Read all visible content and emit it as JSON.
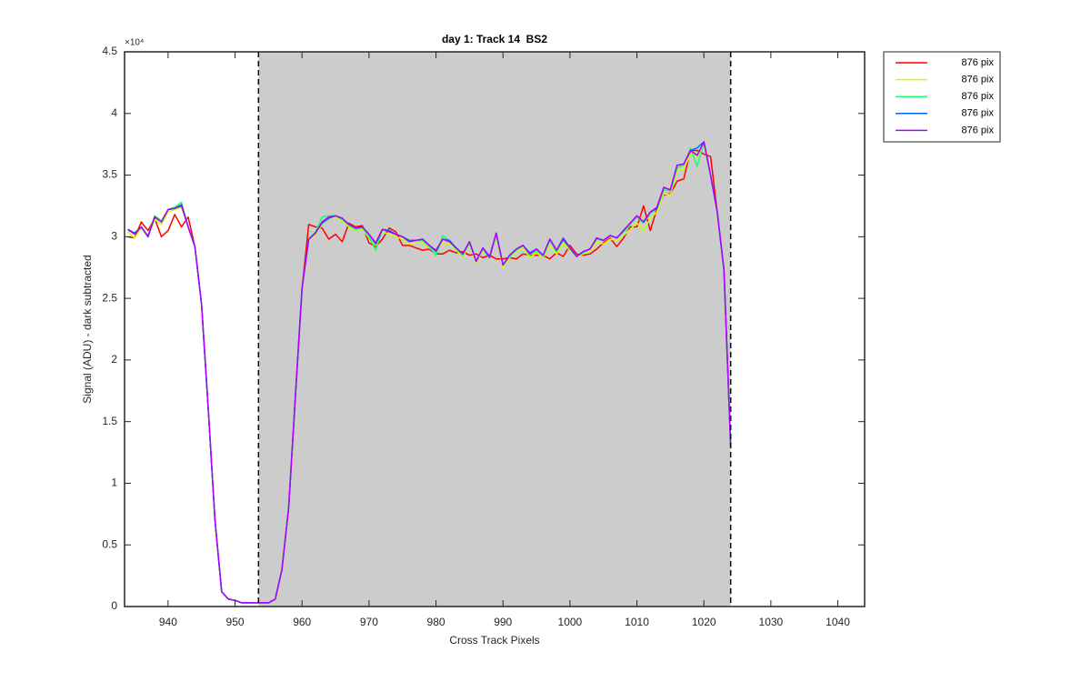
{
  "chart_data": {
    "type": "line",
    "title": "day 1: Track 14  BS2",
    "xlabel": "Cross Track Pixels",
    "ylabel": "Signal (ADU) - dark subtracted",
    "y_exponent": "×10⁴",
    "xlim": [
      933.5,
      1044
    ],
    "ylim": [
      0,
      45000
    ],
    "xticks": [
      940,
      950,
      960,
      970,
      980,
      990,
      1000,
      1010,
      1020,
      1030,
      1040
    ],
    "yticks": [
      0,
      {
        "value": 5000,
        "label": "0.5"
      },
      {
        "value": 10000,
        "label": "1"
      },
      {
        "value": 15000,
        "label": "1.5"
      },
      {
        "value": 20000,
        "label": "2"
      },
      {
        "value": 25000,
        "label": "2.5"
      },
      {
        "value": 30000,
        "label": "3"
      },
      {
        "value": 35000,
        "label": "3.5"
      },
      {
        "value": 40000,
        "label": "4"
      },
      {
        "value": 45000,
        "label": "4.5"
      }
    ],
    "shaded_region": [
      953.5,
      1024
    ],
    "shade_color": "#cccccc",
    "vlines": [
      953.5,
      1024
    ],
    "legend_location": "northeastoutside",
    "x": [
      934,
      935,
      936,
      937,
      938,
      939,
      940,
      941,
      942,
      943,
      944,
      945,
      946,
      947,
      948,
      949,
      950,
      951,
      952,
      953,
      954,
      955,
      956,
      957,
      958,
      959,
      960,
      961,
      962,
      963,
      964,
      965,
      966,
      967,
      968,
      969,
      970,
      971,
      972,
      973,
      974,
      975,
      976,
      977,
      978,
      979,
      980,
      981,
      982,
      983,
      984,
      985,
      986,
      987,
      988,
      989,
      990,
      991,
      992,
      993,
      994,
      995,
      996,
      997,
      998,
      999,
      1000,
      1001,
      1002,
      1003,
      1004,
      1005,
      1006,
      1007,
      1008,
      1009,
      1010,
      1011,
      1012,
      1013,
      1014,
      1015,
      1016,
      1017,
      1018,
      1019,
      1020,
      1021,
      1022,
      1023,
      1024
    ],
    "series": [
      {
        "name": "876 pix",
        "color": "#ff0000",
        "values": [
          30000,
          29900,
          31200,
          30500,
          31500,
          30000,
          30500,
          31800,
          30800,
          31600,
          29200,
          24500,
          16000,
          7000,
          1200,
          600,
          500,
          300,
          300,
          300,
          300,
          300,
          600,
          3000,
          8000,
          17000,
          25800,
          31000,
          30800,
          30700,
          29800,
          30200,
          29600,
          31100,
          30800,
          30900,
          29500,
          29200,
          29800,
          30700,
          30400,
          29300,
          29300,
          29100,
          28900,
          29000,
          28600,
          28600,
          28900,
          28700,
          28800,
          28500,
          28600,
          28300,
          28500,
          28200,
          28200,
          28300,
          28200,
          28600,
          28500,
          28500,
          28500,
          28200,
          28700,
          28400,
          29300,
          28600,
          28500,
          28600,
          29000,
          29500,
          29900,
          29200,
          29900,
          30800,
          30800,
          32500,
          30500,
          32300,
          33400,
          33500,
          34500,
          34700,
          37000,
          37000,
          36700,
          36500,
          32000,
          27300,
          13000
        ]
      },
      {
        "name": "876 pix",
        "color": "#ccff00",
        "values": [
          30400,
          29900,
          30700,
          30000,
          31400,
          31000,
          32000,
          32200,
          32400,
          30800,
          29200,
          24500,
          16000,
          7000,
          1200,
          600,
          500,
          300,
          300,
          300,
          300,
          300,
          600,
          3000,
          8000,
          17000,
          25800,
          29800,
          30200,
          31000,
          31500,
          31600,
          31300,
          30800,
          30500,
          30600,
          29900,
          29300,
          30400,
          30200,
          30000,
          29800,
          29400,
          29500,
          29500,
          29100,
          28700,
          29500,
          29400,
          28900,
          28400,
          29400,
          27900,
          28900,
          28300,
          30100,
          27500,
          28300,
          28800,
          29100,
          28300,
          28700,
          28300,
          29300,
          28600,
          29500,
          28900,
          28400,
          28600,
          28800,
          29600,
          29400,
          29800,
          29700,
          30100,
          30600,
          31100,
          30500,
          31500,
          32000,
          33500,
          33400,
          35400,
          35500,
          36700,
          36500,
          37500,
          35000,
          32000,
          27300,
          13000
        ]
      },
      {
        "name": "876 pix",
        "color": "#1aff70",
        "values": [
          30500,
          30300,
          30800,
          30100,
          31700,
          31300,
          32200,
          32400,
          32800,
          30800,
          29200,
          24500,
          16000,
          7000,
          1200,
          600,
          500,
          300,
          300,
          300,
          300,
          300,
          600,
          3000,
          8000,
          17000,
          25800,
          29800,
          30400,
          31600,
          31700,
          31700,
          31400,
          30900,
          30600,
          30700,
          30000,
          28900,
          30600,
          30500,
          30200,
          30000,
          29700,
          29700,
          29700,
          29200,
          28500,
          30100,
          29700,
          29000,
          28500,
          29500,
          28000,
          29000,
          28300,
          30200,
          27700,
          28400,
          28900,
          29300,
          28500,
          28900,
          28400,
          29700,
          28800,
          29700,
          29000,
          28400,
          28700,
          29000,
          29800,
          29700,
          30100,
          29900,
          30400,
          31000,
          31600,
          31100,
          31900,
          32300,
          33800,
          33700,
          35600,
          35800,
          37200,
          35700,
          37700,
          35000,
          32000,
          27300,
          13000
        ]
      },
      {
        "name": "876 pix",
        "color": "#0066ff",
        "values": [
          30600,
          30300,
          30800,
          30000,
          31600,
          31200,
          32200,
          32300,
          32600,
          30800,
          29200,
          24500,
          16000,
          7000,
          1200,
          600,
          500,
          300,
          300,
          300,
          300,
          300,
          600,
          3000,
          8000,
          17000,
          25800,
          29800,
          30300,
          31100,
          31500,
          31700,
          31500,
          31000,
          30700,
          30800,
          30200,
          29400,
          30600,
          30500,
          30200,
          30000,
          29700,
          29700,
          29800,
          29300,
          28800,
          29800,
          29700,
          29100,
          28600,
          29600,
          28000,
          29100,
          28300,
          30300,
          27700,
          28500,
          29000,
          29300,
          28700,
          29000,
          28500,
          29800,
          28900,
          29900,
          29100,
          28400,
          28800,
          29000,
          29900,
          29700,
          30100,
          29900,
          30500,
          31100,
          31700,
          31200,
          32000,
          32300,
          34000,
          33800,
          35800,
          35900,
          37000,
          37200,
          37700,
          35000,
          32000,
          27300,
          13000
        ]
      },
      {
        "name": "876 pix",
        "color": "#b000ff",
        "values": [
          30600,
          30200,
          30800,
          30000,
          31600,
          31200,
          32200,
          32300,
          32500,
          30800,
          29200,
          24500,
          16000,
          7000,
          1200,
          600,
          500,
          300,
          300,
          300,
          300,
          300,
          600,
          3000,
          8000,
          17000,
          25800,
          29800,
          30300,
          31200,
          31600,
          31700,
          31500,
          31000,
          30700,
          30800,
          30200,
          29500,
          30600,
          30400,
          30200,
          30000,
          29600,
          29700,
          29800,
          29300,
          28900,
          29800,
          29600,
          29100,
          28600,
          29600,
          28000,
          29100,
          28400,
          30300,
          27700,
          28500,
          29000,
          29300,
          28600,
          29000,
          28500,
          29800,
          28900,
          29800,
          29100,
          28400,
          28800,
          29000,
          29900,
          29700,
          30100,
          29900,
          30500,
          31100,
          31700,
          31200,
          32000,
          32400,
          34000,
          33800,
          35800,
          35900,
          37000,
          36600,
          37700,
          35000,
          32000,
          27300,
          13000
        ]
      }
    ]
  }
}
